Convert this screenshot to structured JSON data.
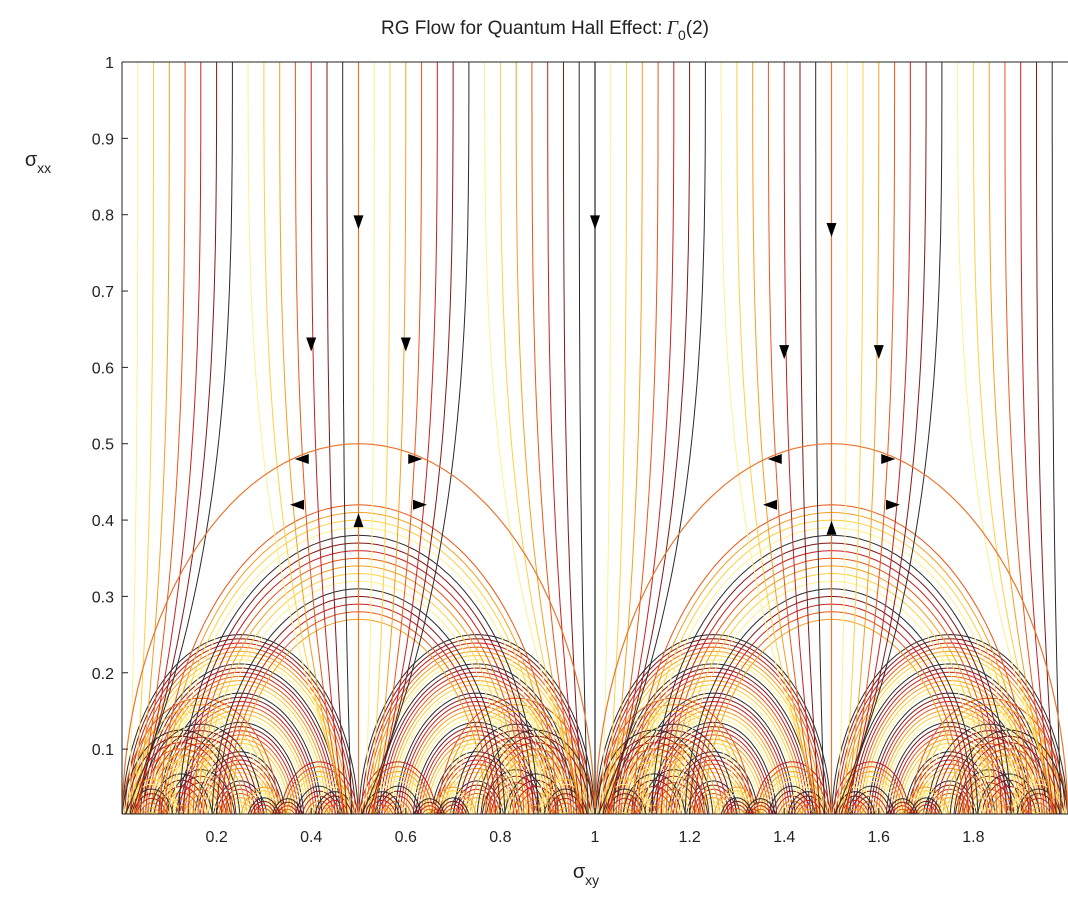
{
  "chart_data": {
    "type": "line",
    "title": "RG Flow for Quantum Hall Effect:",
    "title_symbol": "Γ",
    "title_subscript": "0",
    "title_suffix": "(2)",
    "xlabel": "σ",
    "xlabel_sub": "xy",
    "ylabel": "σ",
    "ylabel_sub": "xx",
    "xlim": [
      0,
      2
    ],
    "ylim": [
      0.015,
      1
    ],
    "x_ticks": [
      "0.2",
      "0.4",
      "0.6",
      "0.8",
      "1",
      "1.2",
      "1.4",
      "1.6",
      "1.8"
    ],
    "x_tick_values": [
      0.2,
      0.4,
      0.6,
      0.8,
      1.0,
      1.2,
      1.4,
      1.6,
      1.8
    ],
    "y_ticks": [
      "0.1",
      "0.2",
      "0.3",
      "0.4",
      "0.5",
      "0.6",
      "0.7",
      "0.8",
      "0.9",
      "1"
    ],
    "y_tick_values": [
      0.1,
      0.2,
      0.3,
      0.4,
      0.5,
      0.6,
      0.7,
      0.8,
      0.9,
      1.0
    ],
    "grid": false,
    "legend": false,
    "colormap": [
      "#fff090",
      "#ffd040",
      "#f4a020",
      "#e85818",
      "#c82020",
      "#801818",
      "#2a2a2a"
    ],
    "fixed_points": [
      {
        "x": 0.5,
        "y": 0.5
      },
      {
        "x": 1.5,
        "y": 0.5
      }
    ],
    "arrows": [
      {
        "x": 0.5,
        "y": 0.79,
        "dir": "down"
      },
      {
        "x": 1.0,
        "y": 0.79,
        "dir": "down"
      },
      {
        "x": 1.5,
        "y": 0.78,
        "dir": "down"
      },
      {
        "x": 0.4,
        "y": 0.63,
        "dir": "down"
      },
      {
        "x": 0.6,
        "y": 0.63,
        "dir": "down"
      },
      {
        "x": 1.4,
        "y": 0.62,
        "dir": "down"
      },
      {
        "x": 1.6,
        "y": 0.62,
        "dir": "down"
      },
      {
        "x": 0.38,
        "y": 0.48,
        "dir": "left"
      },
      {
        "x": 0.62,
        "y": 0.48,
        "dir": "right"
      },
      {
        "x": 1.38,
        "y": 0.48,
        "dir": "left"
      },
      {
        "x": 1.62,
        "y": 0.48,
        "dir": "right"
      },
      {
        "x": 0.37,
        "y": 0.42,
        "dir": "left"
      },
      {
        "x": 0.63,
        "y": 0.42,
        "dir": "right"
      },
      {
        "x": 1.37,
        "y": 0.42,
        "dir": "left"
      },
      {
        "x": 1.63,
        "y": 0.42,
        "dir": "right"
      },
      {
        "x": 0.5,
        "y": 0.4,
        "dir": "up"
      },
      {
        "x": 1.5,
        "y": 0.39,
        "dir": "up"
      }
    ]
  }
}
